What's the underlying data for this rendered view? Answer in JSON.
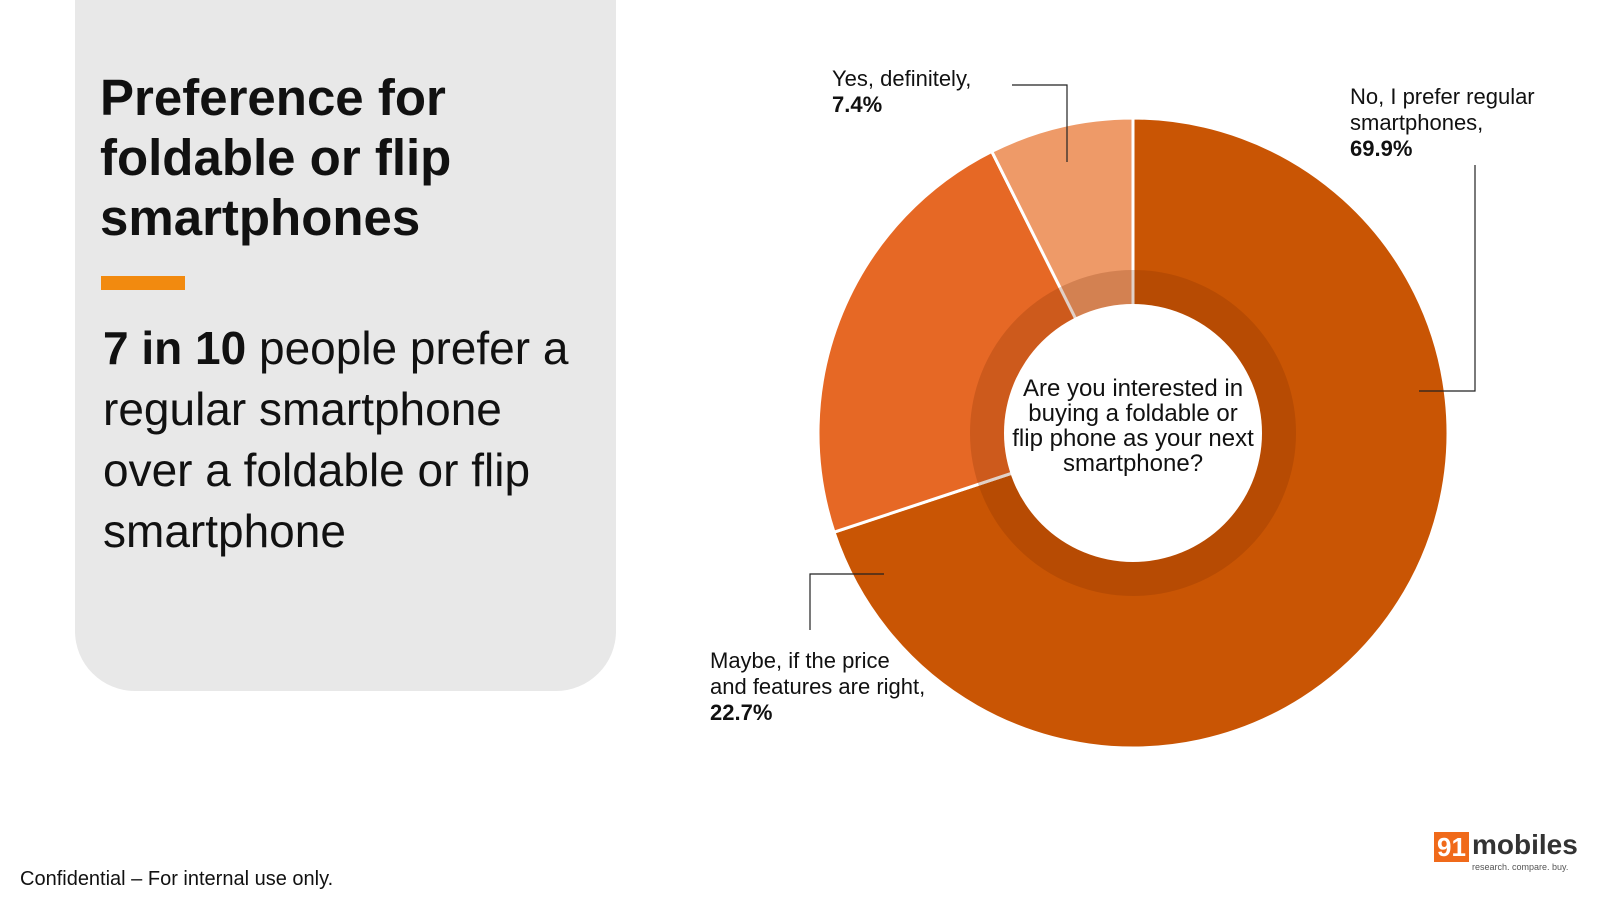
{
  "chart_data": {
    "type": "pie",
    "title": "Preference for foldable or flip smartphones",
    "subtitle_bold": "7 in 10",
    "subtitle": "people prefer a regular smartphone over a foldable or flip smartphone",
    "center_text": "Are you interested in buying a foldable or flip phone as your next smartphone?",
    "categories": [
      "No, I prefer regular smartphones,",
      "Maybe, if the price and features are right,",
      "Yes, definitely,"
    ],
    "values": [
      69.9,
      22.7,
      7.4
    ],
    "value_labels": [
      "69.9%",
      "22.7%",
      "7.4%"
    ],
    "colors": [
      "#c95504",
      "#e66825",
      "#ee9a68"
    ]
  },
  "footer": "Confidential – For internal use only.",
  "logo": {
    "number": "91",
    "name": "mobiles",
    "tagline": "research. compare. buy."
  }
}
